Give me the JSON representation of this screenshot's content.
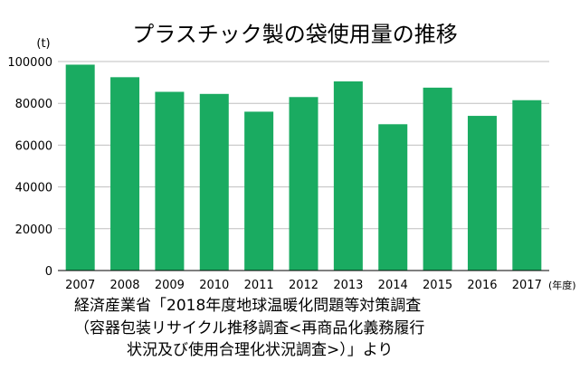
{
  "chart_data": {
    "type": "bar",
    "title": "プラスチック製の袋使用量の推移",
    "ylabel": "(t)",
    "xlabel": "(年度)",
    "categories": [
      "2007",
      "2008",
      "2009",
      "2010",
      "2011",
      "2012",
      "2013",
      "2014",
      "2015",
      "2016",
      "2017"
    ],
    "series": [
      {
        "values": [
          98500,
          92500,
          85500,
          84500,
          76000,
          83000,
          90500,
          70000,
          87500,
          74000,
          81500
        ]
      }
    ],
    "ylim": [
      0,
      100000
    ],
    "yticks": [
      "0",
      "20000",
      "40000",
      "60000",
      "80000",
      "100000"
    ],
    "grid": true,
    "legend": "none",
    "bar_color": "#1aab61",
    "grid_color": "#bfbfbf"
  },
  "source": {
    "line1": "経済産業省「2018年度地球温暖化問題等対策調査",
    "line2": "（容器包装リサイクル推移調査<再商品化義務履行",
    "line3": "状況及び使用合理化状況調査>）」より"
  }
}
